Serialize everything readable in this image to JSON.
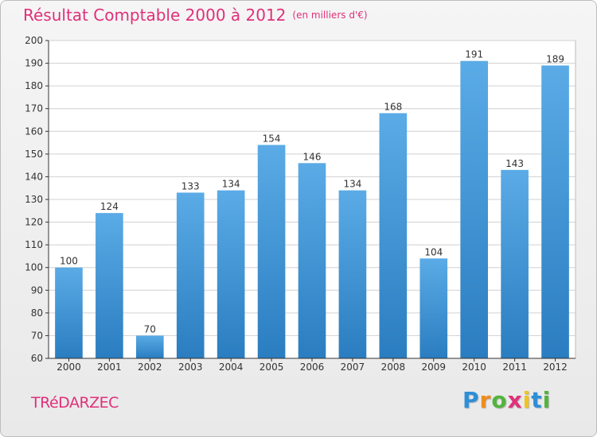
{
  "header": {
    "title": "Résultat Comptable 2000 à 2012",
    "subtitle": "(en milliers d'€)"
  },
  "footer": {
    "location": "TRéDARZEC",
    "logo": {
      "text": "Proxiti",
      "letters": [
        "P",
        "r",
        "o",
        "x",
        "i",
        "t",
        "i"
      ],
      "letter_colors": [
        "#2d8fd6",
        "#f18b1d",
        "#52b43c",
        "#e0307a",
        "#f0c419",
        "#2d8fd6",
        "#52b43c"
      ]
    }
  },
  "colors": {
    "title": "#e0307a",
    "bar_top": "#5aabe6",
    "bar_bottom": "#2a7dc0",
    "grid": "#d0d0d0",
    "axis": "#333333"
  },
  "chart_data": {
    "type": "bar",
    "title": "Résultat Comptable 2000 à 2012",
    "subtitle": "(en milliers d'€)",
    "xlabel": "",
    "ylabel": "",
    "categories": [
      "2000",
      "2001",
      "2002",
      "2003",
      "2004",
      "2005",
      "2006",
      "2007",
      "2008",
      "2009",
      "2010",
      "2011",
      "2012"
    ],
    "values": [
      100,
      124,
      70,
      133,
      134,
      154,
      146,
      134,
      168,
      104,
      191,
      143,
      189
    ],
    "ylim": [
      60,
      200
    ],
    "yticks": [
      60,
      70,
      80,
      90,
      100,
      110,
      120,
      130,
      140,
      150,
      160,
      170,
      180,
      190,
      200
    ],
    "grid": true,
    "data_labels": true
  }
}
